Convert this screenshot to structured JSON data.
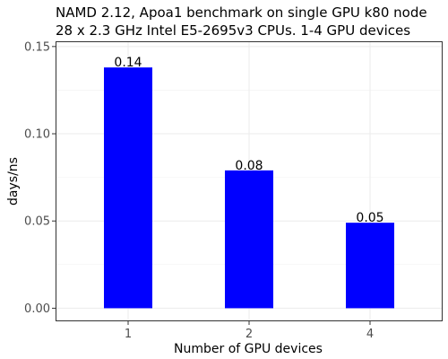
{
  "chart_data": {
    "type": "bar",
    "title": [
      "NAMD 2.12, Apoa1 benchmark on single GPU k80 node",
      "28 x 2.3 GHz Intel E5-2695v3 CPUs. 1-4 GPU devices"
    ],
    "xlabel": "Number of GPU devices",
    "ylabel": "days/ns",
    "categories": [
      "1",
      "2",
      "4"
    ],
    "values": [
      0.138,
      0.079,
      0.049
    ],
    "value_labels": [
      "0.14",
      "0.08",
      "0.05"
    ],
    "ylim": [
      -0.0075,
      0.153
    ],
    "yticks": [
      0.0,
      0.05,
      0.1,
      0.15
    ],
    "ytick_labels": [
      "0.00",
      "0.05",
      "0.10",
      "0.15"
    ],
    "grid": true,
    "bar_color": "#0000ff",
    "legend": "none"
  }
}
